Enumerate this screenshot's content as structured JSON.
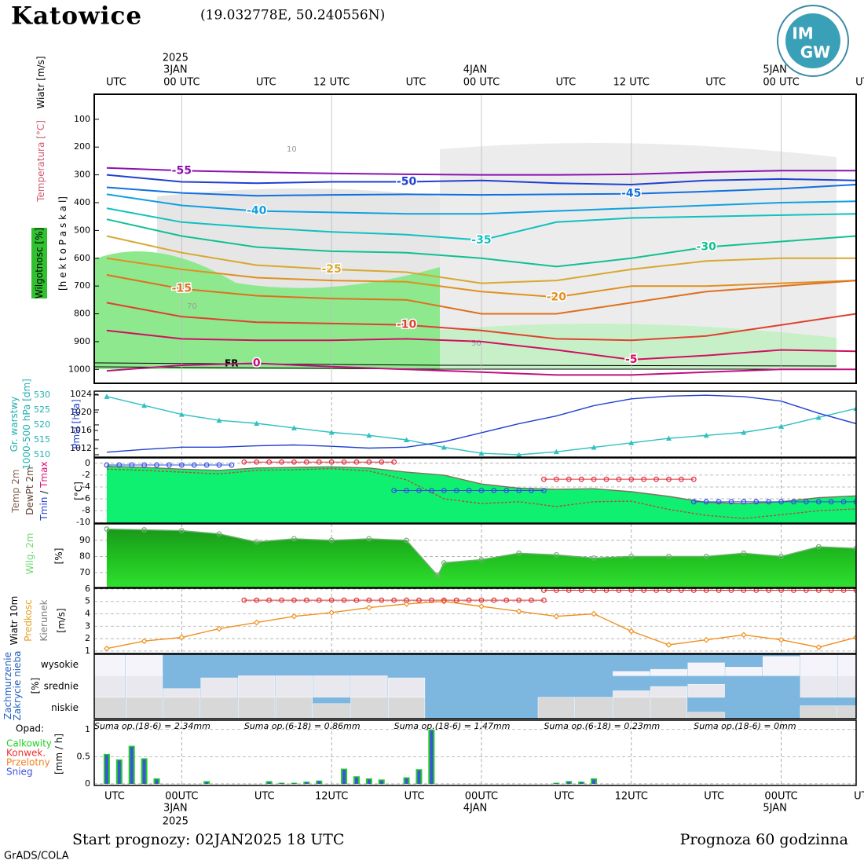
{
  "header": {
    "title": "Katowice",
    "coords": "(19.032778E, 50.240556N)",
    "logo": [
      "IM",
      "GW"
    ]
  },
  "time_axis": {
    "xlim": [
      -1,
      60
    ],
    "top_ticks": [
      {
        "value": 0,
        "label": "UTC"
      },
      {
        "value": 6,
        "label": "00 UTC"
      },
      {
        "value": 12,
        "label": "UTC"
      },
      {
        "value": 18,
        "label": "12 UTC"
      },
      {
        "value": 24,
        "label": "UTC"
      },
      {
        "value": 30,
        "label": "00 UTC"
      },
      {
        "value": 36,
        "label": "UTC"
      },
      {
        "value": 42,
        "label": "12 UTC"
      },
      {
        "value": 48,
        "label": "UTC"
      },
      {
        "value": 54,
        "label": "00 UTC"
      },
      {
        "value": 60,
        "label": "UTC"
      }
    ],
    "bottom_ticks": [
      {
        "value": 0,
        "label": "UTC"
      },
      {
        "value": 6,
        "label": "00UTC"
      },
      {
        "value": 12,
        "label": "UTC"
      },
      {
        "value": 18,
        "label": "12UTC"
      },
      {
        "value": 24,
        "label": "UTC"
      },
      {
        "value": 30,
        "label": "00UTC"
      },
      {
        "value": 36,
        "label": "UTC"
      },
      {
        "value": 42,
        "label": "12UTC"
      },
      {
        "value": 48,
        "label": "UTC"
      },
      {
        "value": 54,
        "label": "00UTC"
      },
      {
        "value": 60,
        "label": "UTC"
      }
    ],
    "dates": [
      {
        "value": 6,
        "label": "3JAN"
      },
      {
        "value": 30,
        "label": "4JAN"
      },
      {
        "value": 54,
        "label": "5JAN"
      }
    ],
    "year": {
      "value": 6,
      "label": "2025"
    }
  },
  "chart_data": [
    {
      "type": "contour",
      "ylabels": [
        {
          "text": "Wiatr [m/s]",
          "color": "#000000"
        },
        {
          "text": "Temperatura [°C]",
          "color": "#d05a70"
        },
        {
          "text": "Wilgotnosc [%]",
          "color": "#000000"
        },
        {
          "text": "[h e k t o P a s k a l]",
          "color": "#000000"
        }
      ],
      "ylim": [
        1050,
        10
      ],
      "yticks": [
        100,
        200,
        300,
        400,
        500,
        600,
        700,
        800,
        900,
        1000
      ],
      "x": [
        0,
        6,
        12,
        18,
        24,
        30,
        36,
        42,
        48,
        54,
        60
      ],
      "annotations": [
        "FR",
        "10",
        "50",
        "70"
      ],
      "series": [
        {
          "name": "-55",
          "color": "#8a12b0",
          "values": [
            275,
            285,
            290,
            295,
            298,
            300,
            300,
            298,
            290,
            285,
            285
          ]
        },
        {
          "name": "-50",
          "color": "#2040d0",
          "values": [
            300,
            325,
            330,
            325,
            325,
            320,
            330,
            335,
            320,
            315,
            320
          ]
        },
        {
          "name": "-45",
          "color": "#1070e0",
          "values": [
            345,
            365,
            375,
            372,
            370,
            372,
            370,
            368,
            360,
            350,
            335
          ]
        },
        {
          "name": "-40",
          "color": "#10a0e0",
          "values": [
            370,
            410,
            430,
            435,
            440,
            440,
            430,
            420,
            410,
            400,
            395
          ]
        },
        {
          "name": "-35",
          "color": "#10c0c0",
          "values": [
            420,
            470,
            490,
            505,
            515,
            535,
            470,
            455,
            450,
            445,
            440
          ]
        },
        {
          "name": "-30",
          "color": "#10c090",
          "values": [
            460,
            520,
            560,
            575,
            580,
            600,
            630,
            600,
            560,
            540,
            520
          ]
        },
        {
          "name": "-25",
          "color": "#d8a830",
          "values": [
            520,
            580,
            625,
            640,
            650,
            690,
            680,
            640,
            610,
            600,
            600
          ]
        },
        {
          "name": "-20",
          "color": "#e09020",
          "values": [
            600,
            640,
            670,
            680,
            685,
            720,
            740,
            700,
            700,
            690,
            680
          ]
        },
        {
          "name": "-15",
          "color": "#e07020",
          "values": [
            660,
            710,
            735,
            745,
            750,
            800,
            800,
            760,
            720,
            700,
            680
          ]
        },
        {
          "name": "-10",
          "color": "#e04030",
          "values": [
            760,
            810,
            830,
            835,
            840,
            860,
            890,
            895,
            880,
            840,
            800
          ]
        },
        {
          "name": "-5",
          "color": "#d01060",
          "values": [
            860,
            890,
            895,
            895,
            890,
            900,
            930,
            965,
            950,
            930,
            935
          ]
        },
        {
          "name": "0",
          "color": "#c01080",
          "values": [
            1005,
            985,
            978,
            990,
            1000,
            1010,
            1020,
            1020,
            1010,
            1000,
            1000
          ]
        }
      ]
    },
    {
      "type": "line",
      "ylabels": [
        {
          "text": "Gr. warstwy",
          "color": "#20b0b0"
        },
        {
          "text": "1000-500 hPa [dm]",
          "color": "#20b0b0"
        },
        {
          "text": "Pmsl [hPa]",
          "color": "#2040d0"
        }
      ],
      "ylim": [
        509.2,
        531.3
      ],
      "yticks": [
        510,
        515,
        520,
        525,
        530
      ],
      "y2lim": [
        1010.1,
        1024.7
      ],
      "y2ticks": [
        1012,
        1016,
        1020,
        1024
      ],
      "x": [
        0,
        3,
        6,
        9,
        12,
        15,
        18,
        21,
        24,
        27,
        30,
        33,
        36,
        39,
        42,
        45,
        48,
        51,
        54,
        57,
        60
      ],
      "series": [
        {
          "color": "#30c0c0",
          "marker": "triangle",
          "values": [
            529.5,
            526.5,
            523.5,
            521.5,
            520.5,
            519,
            517.5,
            516.5,
            515,
            512.5,
            510.5,
            510,
            511,
            512.5,
            514,
            515.5,
            516.5,
            517.5,
            519.5,
            522.5,
            525.5
          ]
        },
        {
          "color": "#2040d0",
          "axis": "y2",
          "values": [
            1011.2,
            1011.8,
            1012.3,
            1012.3,
            1012.6,
            1012.8,
            1012.5,
            1012.1,
            1012.3,
            1013.5,
            1015.5,
            1017.5,
            1019.2,
            1021.5,
            1023,
            1023.6,
            1023.8,
            1023.5,
            1022.5,
            1019.8,
            1017.5
          ]
        }
      ]
    },
    {
      "type": "area",
      "ylabels": [
        {
          "text": "Temp 2m",
          "color": "#806050"
        },
        {
          "text": "DewPt 2m",
          "color": "#604030"
        },
        {
          "text": "Tmin",
          "color": "#2040d0"
        },
        {
          "text": "/",
          "color": "#000000"
        },
        {
          "text": "Tmax",
          "color": "#e01080"
        },
        {
          "text": "[°C]",
          "color": "#000000"
        }
      ],
      "ylim": [
        -10.1,
        0.9
      ],
      "yticks": [
        0,
        -2,
        -4,
        -6,
        -8,
        -10
      ],
      "grid": true,
      "x": [
        0,
        3,
        6,
        9,
        12,
        15,
        18,
        21,
        24,
        27,
        30,
        33,
        36,
        39,
        42,
        45,
        48,
        51,
        54,
        57,
        60
      ],
      "series": [
        {
          "color": "#807060",
          "fill": "#10f070",
          "values": [
            -0.5,
            -0.7,
            -1,
            -1.2,
            -0.8,
            -0.7,
            -0.6,
            -0.8,
            -1.5,
            -2,
            -3.5,
            -4.2,
            -4.4,
            -4.3,
            -4.8,
            -5.6,
            -6.6,
            -6.8,
            -6.5,
            -5.8,
            -5.5
          ]
        },
        {
          "color": "#b05040",
          "dash": true,
          "values": [
            -1,
            -1.2,
            -1.5,
            -1.8,
            -1.2,
            -1.1,
            -0.9,
            -1.3,
            -2.8,
            -6,
            -6.8,
            -6.5,
            -7.3,
            -6.5,
            -6.4,
            -7.8,
            -8.8,
            -9.3,
            -8.7,
            -8,
            -7.7
          ]
        },
        {
          "color": "#3050e0",
          "marker": "circle",
          "segments": [
            {
              "x": [
                0,
                10
              ],
              "value": -0.3
            },
            {
              "x": [
                23,
                35
              ],
              "value": -4.6
            },
            {
              "x": [
                47,
                60
              ],
              "value": -6.5
            }
          ]
        },
        {
          "color": "#e03040",
          "marker": "circle",
          "segments": [
            {
              "x": [
                11,
                23
              ],
              "value": 0.2
            },
            {
              "x": [
                35,
                47
              ],
              "value": -2.7
            }
          ]
        }
      ]
    },
    {
      "type": "area",
      "ylabels": [
        {
          "text": "Wilg. 2m",
          "color": "#70d870"
        },
        {
          "text": "[%]",
          "color": "#000000"
        }
      ],
      "ylim": [
        60.7,
        100.2
      ],
      "yticks": [
        70,
        80,
        90
      ],
      "grid": true,
      "x": [
        0,
        3,
        6,
        9,
        12,
        15,
        18,
        21,
        24,
        26.5,
        27,
        30,
        33,
        36,
        39,
        42,
        45,
        48,
        51,
        54,
        57,
        60
      ],
      "series": [
        {
          "color": "#70b070",
          "fill": "#20c020",
          "marker": "circle",
          "values": [
            97,
            96.5,
            96,
            94,
            89,
            91,
            90,
            91,
            90,
            68,
            76,
            78,
            82,
            81,
            79,
            80,
            80,
            80,
            82,
            80,
            86,
            85
          ]
        }
      ]
    },
    {
      "type": "line",
      "ylabels": [
        {
          "text": "Wiatr 10m",
          "color": "#000000"
        },
        {
          "text": "Predkosc",
          "color": "#e8a020"
        },
        {
          "text": "Kierunek",
          "color": "#808080"
        },
        {
          "text": "[m/s]",
          "color": "#000000"
        }
      ],
      "ylim": [
        0.8,
        6.06
      ],
      "yticks": [
        1,
        2,
        3,
        4,
        5,
        6
      ],
      "grid": true,
      "x": [
        0,
        3,
        6,
        9,
        12,
        15,
        18,
        21,
        24,
        27,
        30,
        33,
        36,
        39,
        42,
        45,
        48,
        51,
        54,
        57,
        60
      ],
      "series": [
        {
          "color": "#f09020",
          "marker": "diamond",
          "values": [
            1.2,
            1.8,
            2.1,
            2.8,
            3.3,
            3.8,
            4.1,
            4.5,
            4.8,
            5,
            4.6,
            4.2,
            3.8,
            4,
            2.6,
            1.5,
            1.9,
            2.3,
            1.9,
            1.3,
            2.1
          ]
        },
        {
          "color": "#e03030",
          "marker": "circle",
          "segments": [
            {
              "x": [
                11,
                35
              ],
              "value": 5.1
            },
            {
              "x": [
                35,
                60
              ],
              "value": 5.9
            }
          ]
        }
      ]
    },
    {
      "type": "band",
      "ylabels": [
        {
          "text": "Zachmurzenie",
          "color": "#2060c0"
        },
        {
          "text": "Zakrycie nieba",
          "color": "#2060c0"
        },
        {
          "text": "[%]",
          "color": "#000000"
        }
      ],
      "ylim": [
        0,
        100
      ],
      "background": "#7db6de",
      "x": [
        0,
        3,
        6,
        9,
        12,
        15,
        18,
        21,
        24,
        27,
        30,
        33,
        36,
        39,
        42,
        45,
        48,
        51,
        54,
        57,
        60
      ],
      "series": [
        {
          "name": "wysokie",
          "color": "#f4f4fa",
          "values": [
            100,
            100,
            0,
            0,
            0,
            0,
            0,
            0,
            0,
            0,
            0,
            0,
            0,
            0,
            20,
            30,
            60,
            40,
            90,
            100,
            100
          ]
        },
        {
          "name": "srednie",
          "color": "#e8e8ee",
          "values": [
            100,
            100,
            40,
            90,
            100,
            100,
            100,
            100,
            90,
            0,
            0,
            0,
            0,
            0,
            30,
            50,
            60,
            0,
            0,
            100,
            100
          ]
        },
        {
          "name": "niskie",
          "color": "#d8d8d8",
          "values": [
            100,
            100,
            100,
            100,
            100,
            100,
            70,
            100,
            100,
            0,
            0,
            0,
            100,
            100,
            100,
            100,
            30,
            0,
            0,
            60,
            60
          ]
        }
      ]
    },
    {
      "type": "bar",
      "title": "Opad:",
      "ylabels": [
        {
          "text": "[mm / h]",
          "color": "#000000"
        }
      ],
      "sums": [
        "Suma op.(18-6) = 2.34mm",
        "Suma op.(6-18) = 0.86mm",
        "Suma op.(18-6) = 1.47mm",
        "Suma op.(6-18) = 0.23mm",
        "Suma op.(18-6) = 0mm"
      ],
      "ylim": [
        -0.03,
        1.17
      ],
      "yticks": [
        0,
        0.5,
        1
      ],
      "grid": true,
      "x": [
        0,
        1,
        2,
        3,
        4,
        8,
        13,
        14,
        15,
        16,
        17,
        19,
        20,
        21,
        22,
        24,
        25,
        26,
        36,
        37,
        38,
        39
      ],
      "series": [
        {
          "name": "Calkowity",
          "color": "#20d020",
          "values": [
            0.55,
            0.45,
            0.7,
            0.47,
            0.1,
            0.05,
            0.05,
            0.02,
            0.02,
            0.04,
            0.06,
            0.28,
            0.14,
            0.1,
            0.08,
            0.12,
            0.27,
            1,
            0.02,
            0.05,
            0.04,
            0.1
          ]
        },
        {
          "name": "Konwek.",
          "color": "#f03030"
        },
        {
          "name": "Przelotny",
          "color": "#f08020"
        },
        {
          "name": "Snieg",
          "color": "#4050e0",
          "values": [
            0.53,
            0.43,
            0.68,
            0.45,
            0.08,
            0.03,
            0.03,
            0.01,
            0.01,
            0.03,
            0.05,
            0.26,
            0.12,
            0.08,
            0.06,
            0.1,
            0.25,
            0.98,
            0.01,
            0.04,
            0.03,
            0.08
          ]
        }
      ]
    }
  ],
  "footer": {
    "start": "Start prognozy: 02JAN2025 18 UTC",
    "length": "Prognoza 60 godzinna",
    "credit": "GrADS/COLA"
  }
}
